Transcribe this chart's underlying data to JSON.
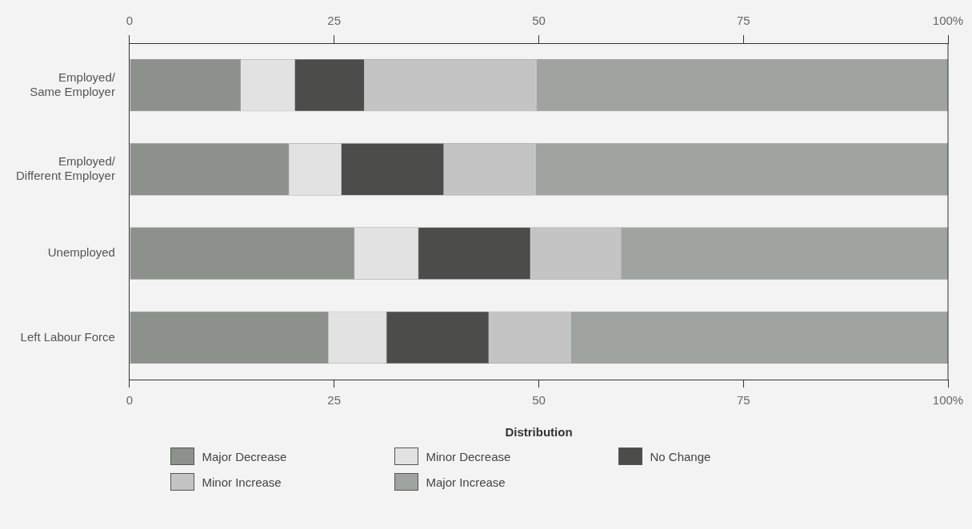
{
  "chart_data": {
    "type": "bar",
    "orientation": "horizontal",
    "stacked": true,
    "xlabel": "Distribution",
    "categories": [
      "Employed/\nSame Employer",
      "Employed/\nDifferent Employer",
      "Unemployed",
      "Left Labour Force"
    ],
    "series": [
      {
        "name": "Major Decrease",
        "color": "#8c918c",
        "values": [
          13.6,
          19.5,
          27.5,
          24.3
        ]
      },
      {
        "name": "Minor Decrease",
        "color": "#e2e2e2",
        "values": [
          6.6,
          6.4,
          7.8,
          7.1
        ]
      },
      {
        "name": "No Change",
        "color": "#4c4c4a",
        "values": [
          8.5,
          12.5,
          13.7,
          12.5
        ]
      },
      {
        "name": "Minor Increase",
        "color": "#c4c4c4",
        "values": [
          21.0,
          11.2,
          11.1,
          10.0
        ]
      },
      {
        "name": "Major Increase",
        "color": "#a0a4a0",
        "values": [
          50.3,
          50.4,
          39.9,
          46.1
        ]
      }
    ],
    "xlim": [
      0,
      100
    ],
    "xticks": [
      0,
      25,
      50,
      75,
      {
        "value": 100,
        "label": "100%"
      }
    ],
    "x2lim": [
      0,
      100
    ],
    "x2ticks": [
      0,
      25,
      50,
      75,
      {
        "value": 100,
        "label": "100%"
      }
    ],
    "grid": false,
    "legend": "bottom"
  }
}
